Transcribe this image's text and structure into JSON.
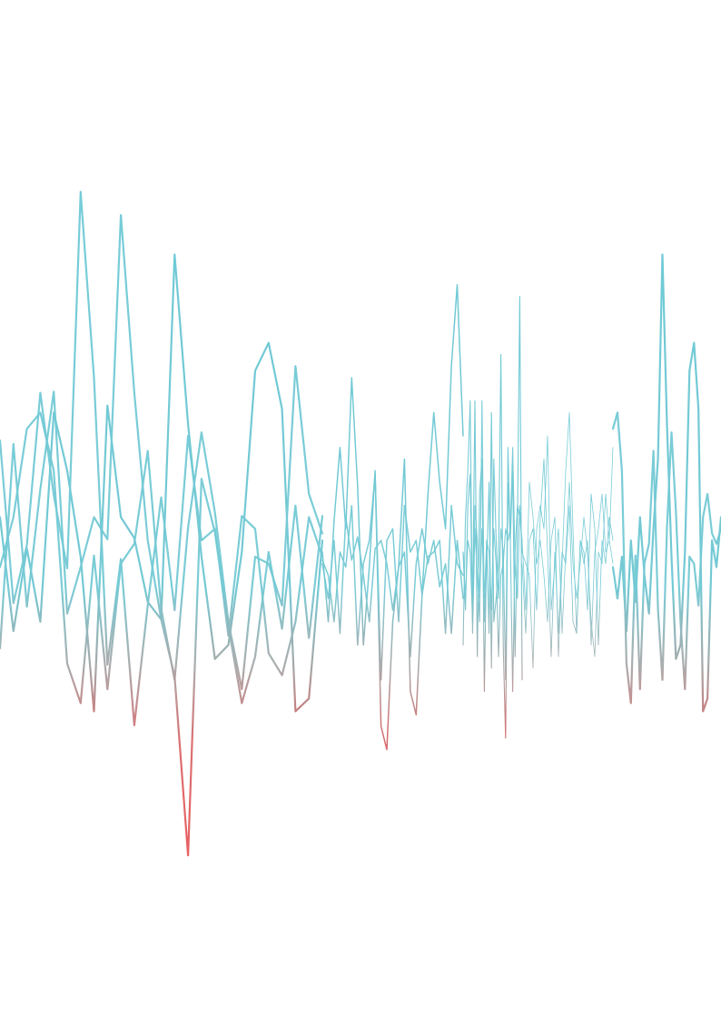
{
  "artwork": {
    "subject": "waveform",
    "colors": {
      "background": "#ffffff",
      "top": "#6ecad6",
      "middle": "#a6a9aa",
      "bottom": "#ee4f52"
    },
    "segments": [
      {
        "stroke": "bold",
        "samples": [
          [
            0.55,
            -0.43,
            0.28,
            -0.35,
            1.45,
            0.95,
            0.21,
            -1.12,
            1.51,
            0.55,
            0.37,
            -0.18,
            -0.33,
            2.81,
            1.35,
            0.21,
            -0.67,
            -0.55,
            0.25,
            1.81,
            2.05,
            1.48,
            -1.12,
            -1.01,
            0.35
          ],
          [
            0.12,
            0.55,
            1.31,
            1.45,
            0.95,
            -0.71,
            -1.05,
            0.22,
            -0.93,
            0.15,
            0.32,
            1.12,
            -0.24,
            -0.85,
            0.46,
            1.28,
            0.59,
            -0.35,
            -0.93,
            0.21,
            0.15,
            -0.21,
            1.85,
            0.75,
            0.41
          ],
          [
            -0.58,
            1.18,
            -0.22,
            0.79,
            1.63,
            -0.28,
            0.12,
            0.55,
            0.36,
            3.15,
            1.62,
            0.35,
            -0.33,
            -0.82,
            -2.36,
            0.88,
            0.42,
            -0.39,
            -1.05,
            -0.65,
            0.25,
            -0.41,
            0.65,
            -0.49,
            0.56
          ],
          [
            1.21,
            -0.19,
            0.31,
            1.62,
            0.74,
            0.11,
            3.35,
            1.75,
            -0.72,
            0.19,
            -1.24,
            -0.21,
            0.72,
            -0.25,
            1.25,
            0.35,
            0.45,
            -0.47,
            0.56,
            0.45,
            -0.62,
            -0.81,
            -0.35,
            0.55,
            0.21
          ]
        ]
      },
      {
        "stroke": "regular",
        "samples": [
          [
            0.25,
            -0.35,
            0.52,
            1.15,
            0.45,
            1.75,
            0.82,
            -0.55,
            0.12,
            0.95,
            -1.25,
            -1.45,
            -0.35,
            0.12,
            1.05,
            -0.95,
            -1.15,
            -0.12,
            0.75,
            1.45,
            0.85,
            0.45,
            1.85,
            2.55,
            1.25
          ],
          [
            0.15,
            -0.15,
            0.35,
            -0.45,
            0.55,
            0.18,
            0.38,
            0.05,
            -0.35,
            0.28,
            0.35,
            0.15,
            -0.25,
            0.12,
            0.25,
            -0.65,
            0.15,
            0.45,
            0.15,
            0.35,
            -0.05,
            0.15,
            -0.45,
            0.35,
            -0.15
          ],
          [
            0.18,
            0.05,
            -0.35,
            0.25,
            0.12,
            0.65,
            -0.55,
            0.15,
            0.35,
            0.92,
            -0.85,
            0.35,
            0.45,
            -0.35,
            0.65,
            0.25,
            0.35,
            -0.12,
            0.21,
            0.25,
            0.35,
            -0.45,
            0.65,
            0.15,
            0.05
          ]
        ]
      },
      {
        "stroke": "light",
        "samples": [
          [
            0.25,
            -0.25,
            0.65,
            0.92,
            -0.25,
            1.55,
            -0.65,
            0.75,
            1.05,
            -0.95,
            0.35,
            -0.45,
            1.45,
            -0.35,
            -0.15,
            0.15,
            1.95,
            -0.55,
            -1.35,
            0.85,
            0.35,
            0.95,
            -0.65,
            0.45,
            2.45,
            -0.85
          ],
          [
            0.25,
            -0.15,
            0.35,
            0.25,
            -0.35,
            0.65,
            0.35,
            -0.15,
            0.45,
            -0.15,
            0.35,
            0.25,
            -0.25,
            0.45,
            0.15,
            -0.65,
            0.05,
            0.15,
            0.45,
            0.35,
            0.45,
            1.15,
            0.15,
            -0.15,
            0.65,
            0.25
          ],
          [
            -0.55,
            0.55,
            0.95,
            1.55,
            -0.45,
            0.45,
            0.05,
            -0.35,
            1.55,
            -0.35,
            0.15,
            0.85,
            -0.75,
            1.05,
            0.35,
            -0.15,
            0.45,
            0.25,
            -0.85,
            1.15,
            0.35,
            -0.95,
            0.25,
            0.65,
            0.55,
            0.35
          ]
        ]
      },
      {
        "stroke": "hairline",
        "samples": [
          [
            0.15,
            -0.45,
            0.35,
            0.45,
            -0.25,
            0.55,
            1.05,
            0.25,
            -0.65,
            0.25,
            -0.45,
            0.25,
            0.15,
            0.65,
            -0.35,
            -0.45,
            0.35,
            0.25,
            -0.25,
            0.75,
            0.45,
            -0.55,
            0.35,
            0.15,
            0.55,
            0.35
          ],
          [
            0.25,
            0.15,
            0.05,
            -0.75,
            0.45,
            0.65,
            0.45,
            1.25,
            -0.25,
            0.15,
            0.45,
            -0.45,
            0.25,
            0.85,
            0.15,
            -0.15,
            0.15,
            0.55,
            0.25,
            -0.35,
            -0.65,
            0.25,
            0.15,
            0.75,
            0.35,
            1.15
          ],
          [
            0.35,
            -0.25,
            0.85,
            0.55,
            0.15,
            0.35,
            0.05,
            -0.35,
            0.35,
            0.55,
            -0.65,
            0.15,
            0.95,
            1.45,
            0.45,
            -0.45,
            0.35,
            0.15,
            0.35,
            -0.55,
            0.25,
            0.45,
            0.75,
            0.25,
            0.35,
            0.15
          ]
        ]
      },
      {
        "stroke": "bold",
        "samples": [
          [
            0.12,
            -0.15,
            0.21,
            -0.43,
            0.35,
            -0.18,
            0.55,
            0.05,
            -0.28,
            0.45,
            1.05,
            2.81,
            1.35,
            0.21,
            -0.67,
            -0.55,
            0.25,
            1.81,
            2.05,
            1.48,
            -1.12,
            -1.01,
            0.35,
            0.12,
            0.55
          ],
          [
            1.31,
            1.45,
            0.95,
            -0.71,
            -1.05,
            0.22,
            -0.93,
            0.15,
            0.32,
            1.12,
            -0.24,
            -0.85,
            0.46,
            1.28,
            0.59,
            -0.35,
            -0.93,
            0.21,
            0.15,
            -0.21,
            0.55,
            0.75,
            0.41,
            0.32,
            0.45
          ]
        ]
      }
    ]
  }
}
